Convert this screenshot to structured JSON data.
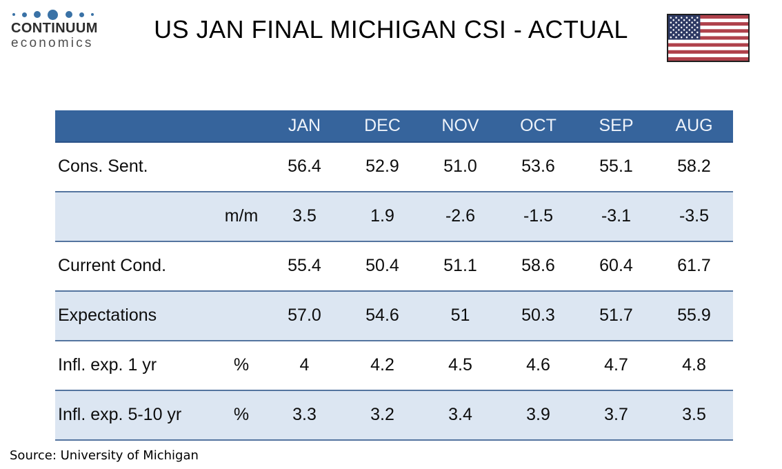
{
  "brand": {
    "name_top": "CONTINUUM",
    "name_bottom": "economics",
    "dot_color": "#3a72a6"
  },
  "header": {
    "title": "US JAN FINAL MICHIGAN CSI - ACTUAL",
    "flag_icon": "us-flag",
    "flag_colors": {
      "red": "#af414b",
      "navy": "#2e3a64",
      "white": "#ffffff"
    }
  },
  "table": {
    "header_bg": "#36649c",
    "shaded_bg": "#dce6f2",
    "border_color": "#54749f",
    "columns": [
      "JAN",
      "DEC",
      "NOV",
      "OCT",
      "SEP",
      "AUG"
    ],
    "rows": [
      {
        "label": "Cons. Sent.",
        "unit": "",
        "values": [
          "56.4",
          "52.9",
          "51.0",
          "53.6",
          "55.1",
          "58.2"
        ],
        "shaded": false
      },
      {
        "label": "",
        "unit": "m/m",
        "values": [
          "3.5",
          "1.9",
          "-2.6",
          "-1.5",
          "-3.1",
          "-3.5"
        ],
        "shaded": true
      },
      {
        "label": "Current Cond.",
        "unit": "",
        "values": [
          "55.4",
          "50.4",
          "51.1",
          "58.6",
          "60.4",
          "61.7"
        ],
        "shaded": false
      },
      {
        "label": "Expectations",
        "unit": "",
        "values": [
          "57.0",
          "54.6",
          "51",
          "50.3",
          "51.7",
          "55.9"
        ],
        "shaded": true
      },
      {
        "label": "Infl. exp. 1 yr",
        "unit": "%",
        "values": [
          "4",
          "4.2",
          "4.5",
          "4.6",
          "4.7",
          "4.8"
        ],
        "shaded": false
      },
      {
        "label": "Infl. exp. 5-10 yr",
        "unit": "%",
        "values": [
          "3.3",
          "3.2",
          "3.4",
          "3.9",
          "3.7",
          "3.5"
        ],
        "shaded": true
      }
    ]
  },
  "footer": {
    "source": "Source: University of Michigan"
  },
  "chart_data": {
    "type": "table",
    "title": "US JAN FINAL MICHIGAN CSI - ACTUAL",
    "columns": [
      "JAN",
      "DEC",
      "NOV",
      "OCT",
      "SEP",
      "AUG"
    ],
    "series": [
      {
        "name": "Cons. Sent.",
        "unit": "",
        "values": [
          56.4,
          52.9,
          51.0,
          53.6,
          55.1,
          58.2
        ]
      },
      {
        "name": "Cons. Sent. m/m",
        "unit": "m/m",
        "values": [
          3.5,
          1.9,
          -2.6,
          -1.5,
          -3.1,
          -3.5
        ]
      },
      {
        "name": "Current Cond.",
        "unit": "",
        "values": [
          55.4,
          50.4,
          51.1,
          58.6,
          60.4,
          61.7
        ]
      },
      {
        "name": "Expectations",
        "unit": "",
        "values": [
          57.0,
          54.6,
          51,
          50.3,
          51.7,
          55.9
        ]
      },
      {
        "name": "Infl. exp. 1 yr",
        "unit": "%",
        "values": [
          4,
          4.2,
          4.5,
          4.6,
          4.7,
          4.8
        ]
      },
      {
        "name": "Infl. exp. 5-10 yr",
        "unit": "%",
        "values": [
          3.3,
          3.2,
          3.4,
          3.9,
          3.7,
          3.5
        ]
      }
    ],
    "source": "Source: University of Michigan"
  }
}
